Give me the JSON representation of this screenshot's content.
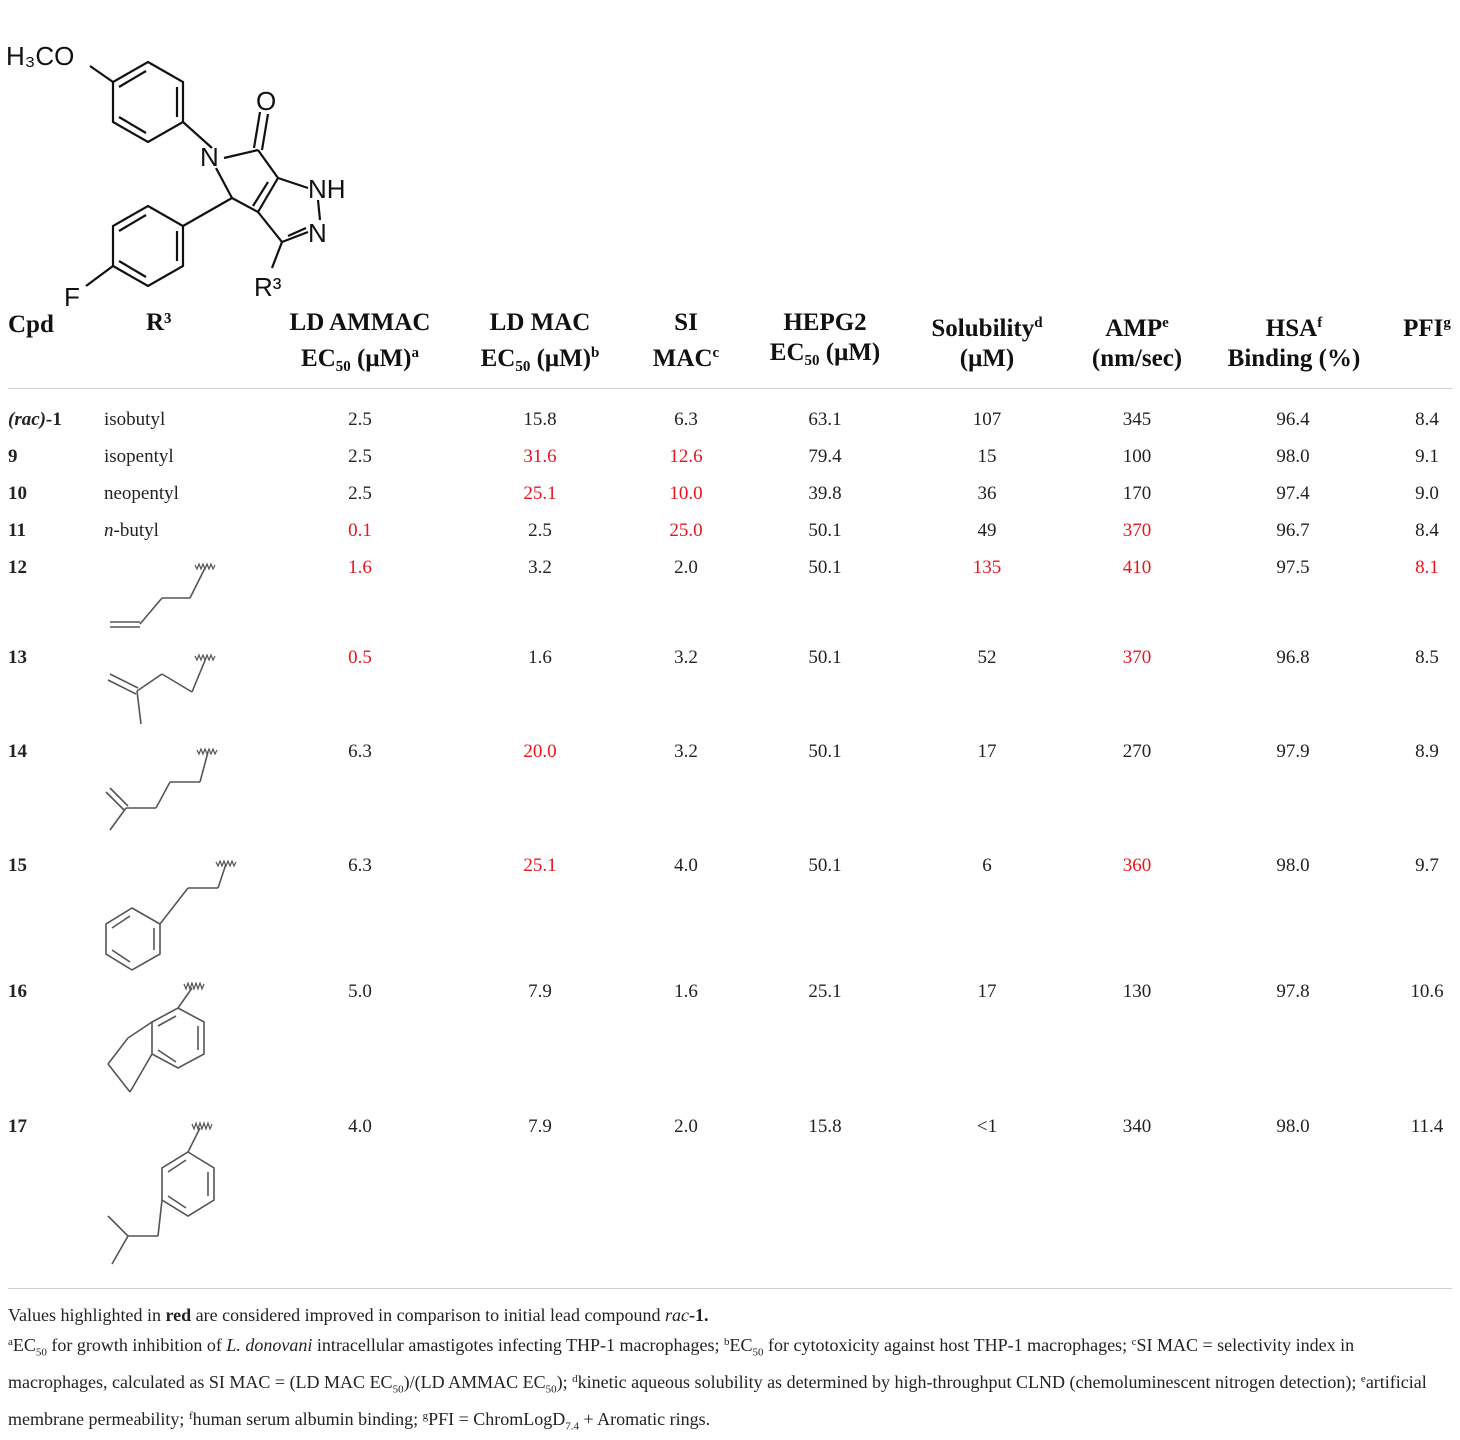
{
  "structure": {
    "labels": {
      "methoxy": "H₃CO",
      "oxo": "O",
      "amide_n": "N",
      "nh": "NH",
      "n": "N",
      "f": "F",
      "r3": "R³"
    }
  },
  "columns": {
    "cpd": "Cpd",
    "r3": "R³",
    "ld_ammac": {
      "line1": "LD AMMAC",
      "line2": "EC₅₀ (μM)",
      "note": "a"
    },
    "ld_mac": {
      "line1": "LD MAC",
      "line2": "EC₅₀ (μM)",
      "note": "b"
    },
    "si_mac": {
      "line1": "SI",
      "line2": "MAC",
      "note": "c"
    },
    "hepg2": {
      "line1": "HEPG2",
      "line2": "EC₅₀ (μM)"
    },
    "solubility": {
      "line1": "Solubility",
      "line2": "(μM)",
      "note": "d"
    },
    "amp": {
      "line1": "AMP",
      "line2": "(nm/sec)",
      "note": "e"
    },
    "hsa": {
      "line1": "HSA",
      "line2": "Binding (%)",
      "note": "f"
    },
    "pfi": {
      "line1": "PFI",
      "note": "g"
    }
  },
  "rows": [
    {
      "cpd_prefix": "(rac)-",
      "cpd": "1",
      "r3": "isobutyl",
      "ld_ammac": "2.5",
      "ld_mac": "15.8",
      "si_mac": "6.3",
      "hepg2": "63.1",
      "solubility": "107",
      "amp": "345",
      "hsa": "96.4",
      "pfi": "8.4"
    },
    {
      "cpd": "9",
      "r3": "isopentyl",
      "ld_ammac": "2.5",
      "ld_mac": "31.6",
      "si_mac": "12.6",
      "hepg2": "79.4",
      "solubility": "15",
      "amp": "100",
      "hsa": "98.0",
      "pfi": "9.1"
    },
    {
      "cpd": "10",
      "r3": "neopentyl",
      "ld_ammac": "2.5",
      "ld_mac": "25.1",
      "si_mac": "10.0",
      "hepg2": "39.8",
      "solubility": "36",
      "amp": "170",
      "hsa": "97.4",
      "pfi": "9.0"
    },
    {
      "cpd": "11",
      "r3_italic": "n",
      "r3": "-butyl",
      "ld_ammac": "0.1",
      "ld_mac": "2.5",
      "si_mac": "25.0",
      "hepg2": "50.1",
      "solubility": "49",
      "amp": "370",
      "hsa": "96.7",
      "pfi": "8.4"
    },
    {
      "cpd": "12",
      "ld_ammac": "1.6",
      "ld_mac": "3.2",
      "si_mac": "2.0",
      "hepg2": "50.1",
      "solubility": "135",
      "amp": "410",
      "hsa": "97.5",
      "pfi": "8.1"
    },
    {
      "cpd": "13",
      "ld_ammac": "0.5",
      "ld_mac": "1.6",
      "si_mac": "3.2",
      "hepg2": "50.1",
      "solubility": "52",
      "amp": "370",
      "hsa": "96.8",
      "pfi": "8.5"
    },
    {
      "cpd": "14",
      "ld_ammac": "6.3",
      "ld_mac": "20.0",
      "si_mac": "3.2",
      "hepg2": "50.1",
      "solubility": "17",
      "amp": "270",
      "hsa": "97.9",
      "pfi": "8.9"
    },
    {
      "cpd": "15",
      "ld_ammac": "6.3",
      "ld_mac": "25.1",
      "si_mac": "4.0",
      "hepg2": "50.1",
      "solubility": "6",
      "amp": "360",
      "hsa": "98.0",
      "pfi": "9.7"
    },
    {
      "cpd": "16",
      "ld_ammac": "5.0",
      "ld_mac": "7.9",
      "si_mac": "1.6",
      "hepg2": "25.1",
      "solubility": "17",
      "amp": "130",
      "hsa": "97.8",
      "pfi": "10.6"
    },
    {
      "cpd": "17",
      "ld_ammac": "4.0",
      "ld_mac": "7.9",
      "si_mac": "2.0",
      "hepg2": "15.8",
      "solubility": "<1",
      "amp": "340",
      "hsa": "98.0",
      "pfi": "11.4"
    }
  ],
  "highlight_color": "#e8141c",
  "footnotes": {
    "intro_1": "Values highlighted in ",
    "intro_red": "red",
    "intro_2": " are considered improved in comparison to initial lead compound ",
    "intro_cpd_italic": "rac",
    "intro_cpd_bold": "-1.",
    "a_mark": "a",
    "a_1": "EC",
    "a_sub": "50",
    "a_2": " for growth inhibition of ",
    "a_italic": "L. donovani",
    "a_3": " intracellular amastigotes infecting THP-1 macrophages; ",
    "b_mark": "b",
    "b_1": "EC",
    "b_sub": "50",
    "b_2": " for cytotoxicity against host THP-1 macrophages; ",
    "c_mark": "c",
    "c_1": "SI MAC = selectivity index in macrophages, calculated as SI MAC = (LD MAC EC",
    "c_sub1": "50",
    "c_2": ")/(LD AMMAC EC",
    "c_sub2": "50",
    "c_3": "); ",
    "d_mark": "d",
    "d_1": "kinetic aqueous solubility as determined by high-throughput CLND (chemoluminescent nitrogen detection);",
    "e_mark": "e",
    "e_1": "artificial membrane permeability; ",
    "f_mark": "f",
    "f_1": "human serum albumin binding; ",
    "g_mark": "g",
    "g_1": "PFI = ChromLogD",
    "g_sub": "7.4",
    "g_2": " + Aromatic rings."
  }
}
